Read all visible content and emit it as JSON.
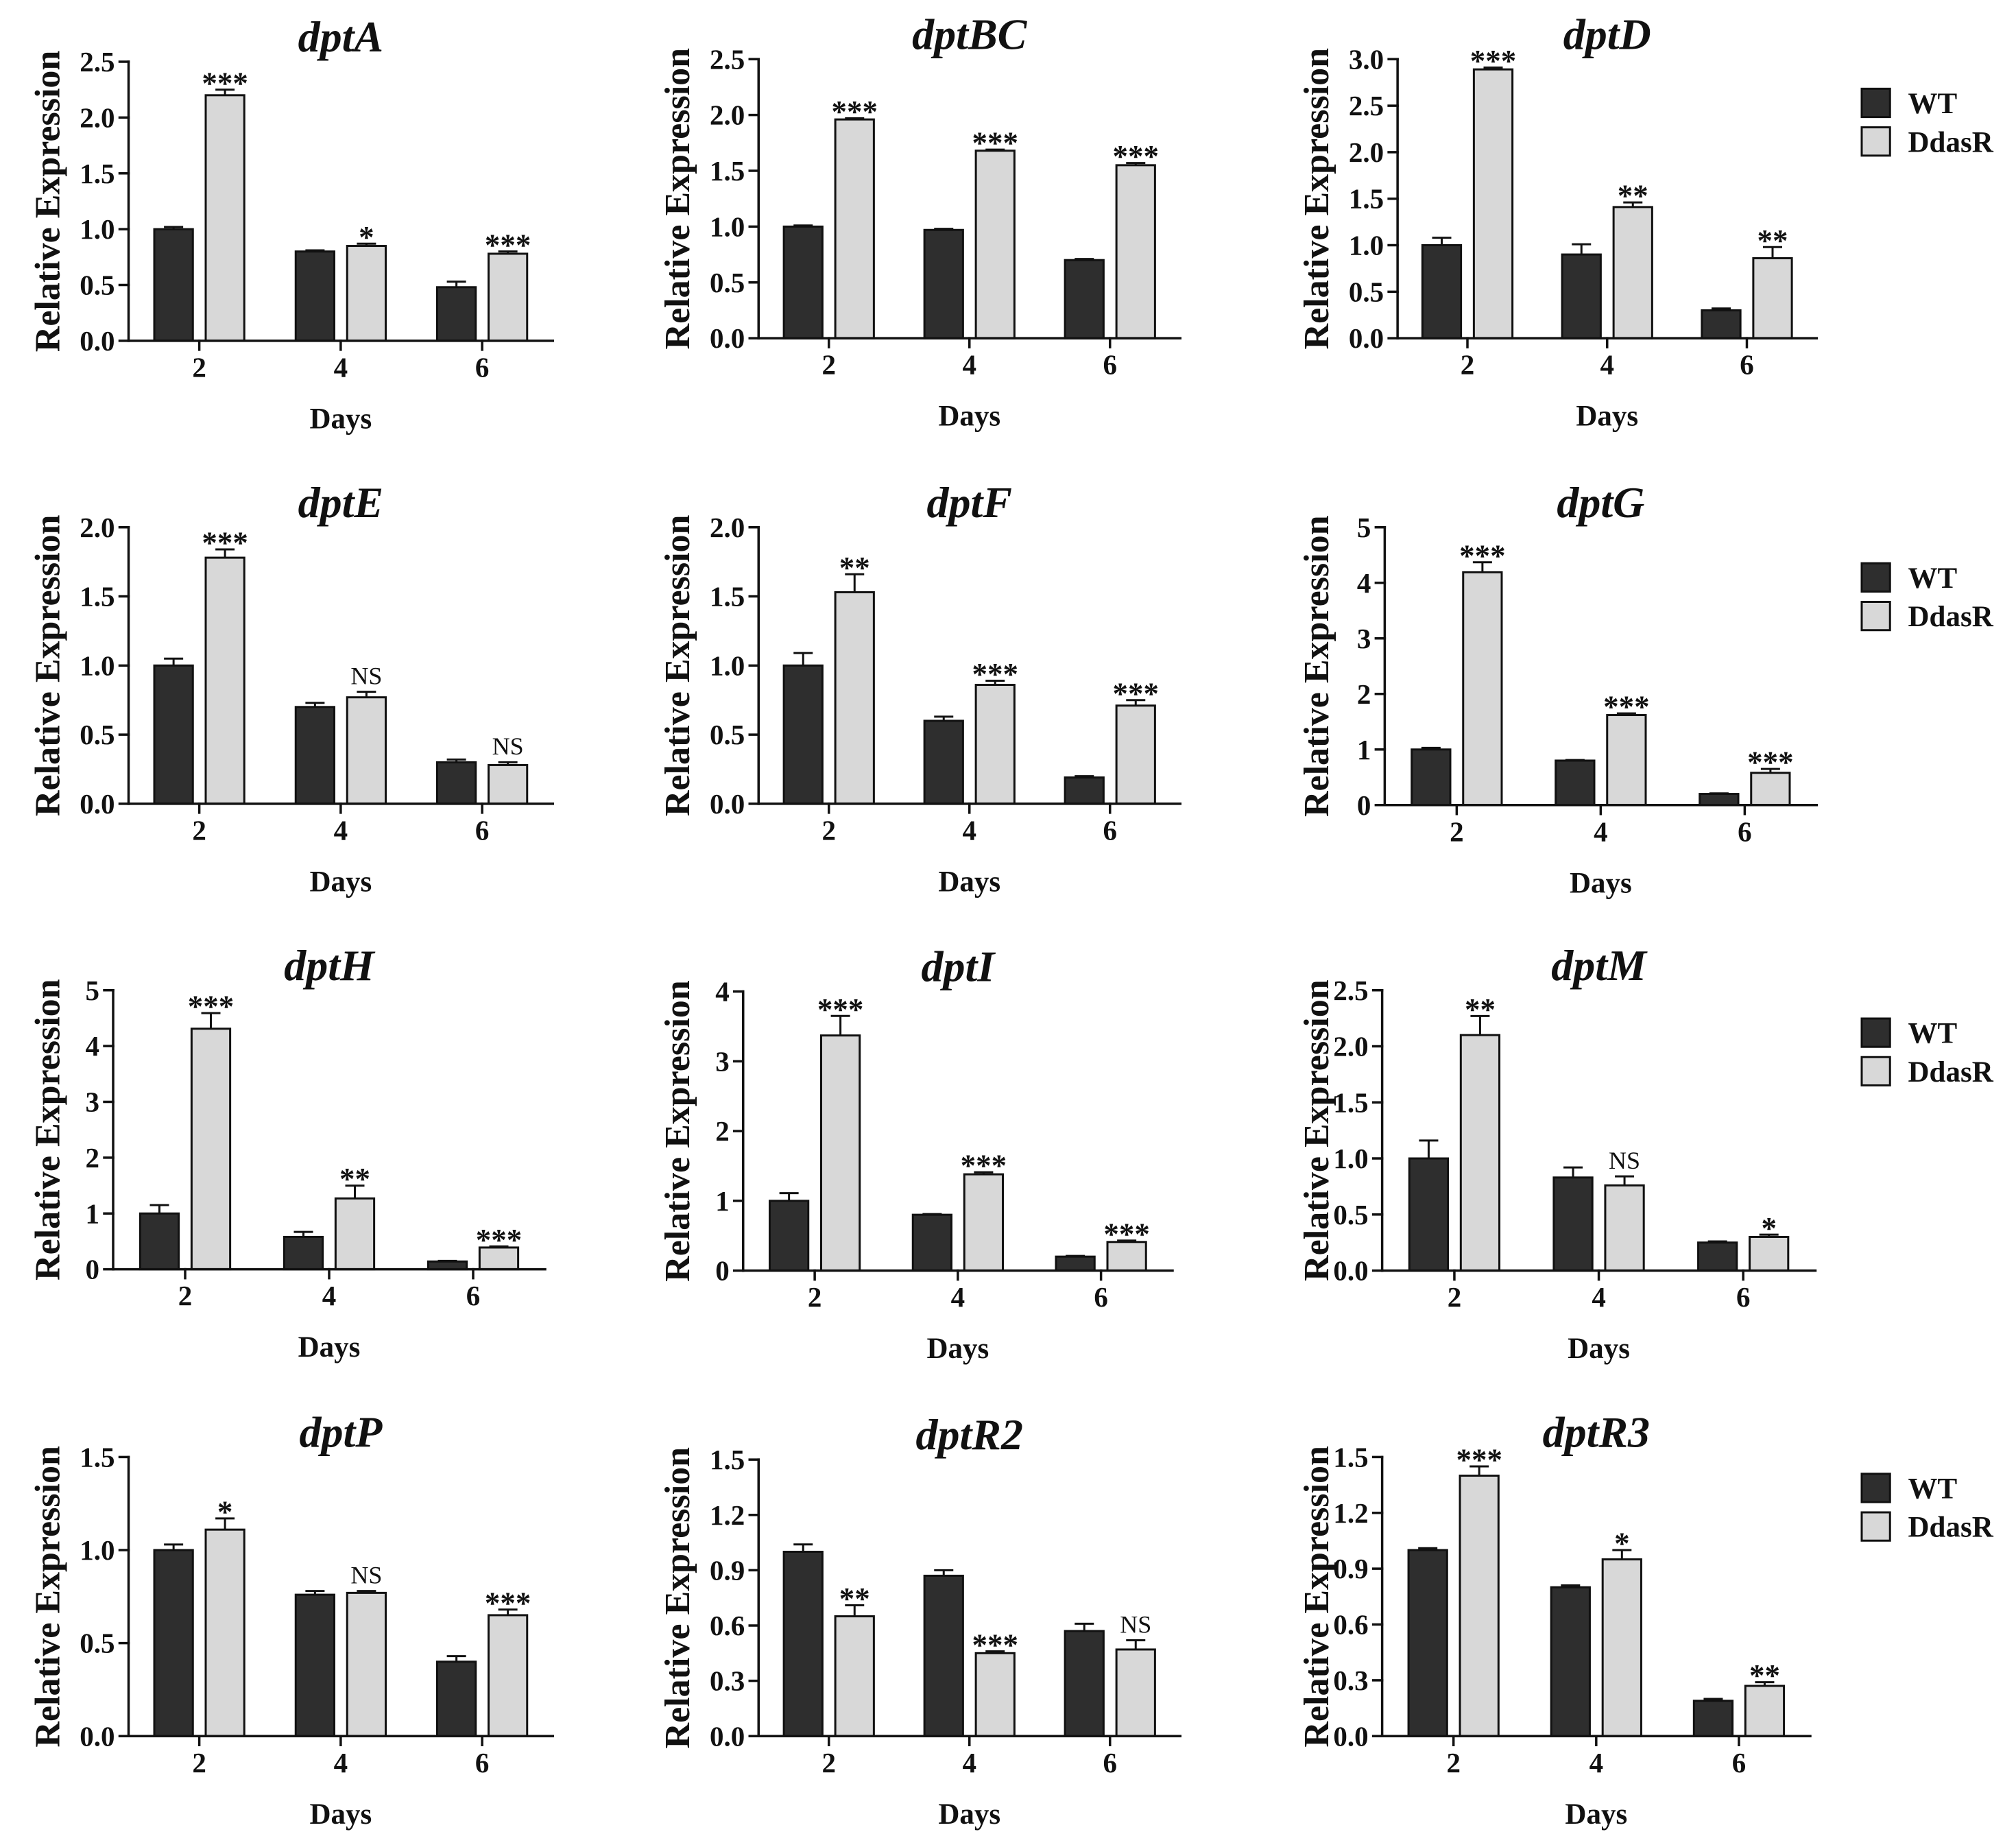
{
  "chart_data": [
    {
      "type": "bar",
      "title": "dptA",
      "xlabel": "Days",
      "ylabel": "Relative Expression",
      "categories": [
        "2",
        "4",
        "6"
      ],
      "ylim": [
        0,
        2.5
      ],
      "yticks": [
        "0.0",
        "0.5",
        "1.0",
        "1.5",
        "2.0",
        "2.5"
      ],
      "series": [
        {
          "name": "WT",
          "color": "#2e2e2e",
          "values": [
            1.0,
            0.8,
            0.48
          ],
          "errors": [
            0.02,
            0.01,
            0.05
          ]
        },
        {
          "name": "DdasR",
          "color": "#d8d8d8",
          "values": [
            2.2,
            0.85,
            0.78
          ],
          "errors": [
            0.05,
            0.02,
            0.02
          ]
        }
      ],
      "significance": [
        "***",
        "*",
        "***"
      ]
    },
    {
      "type": "bar",
      "title": "dptBC",
      "xlabel": "Days",
      "ylabel": "Relative Expression",
      "categories": [
        "2",
        "4",
        "6"
      ],
      "ylim": [
        0,
        2.5
      ],
      "yticks": [
        "0.0",
        "0.5",
        "1.0",
        "1.5",
        "2.0",
        "2.5"
      ],
      "series": [
        {
          "name": "WT",
          "color": "#2e2e2e",
          "values": [
            1.0,
            0.97,
            0.7
          ],
          "errors": [
            0.01,
            0.01,
            0.01
          ]
        },
        {
          "name": "DdasR",
          "color": "#d8d8d8",
          "values": [
            1.96,
            1.68,
            1.55
          ],
          "errors": [
            0.01,
            0.01,
            0.02
          ]
        }
      ],
      "significance": [
        "***",
        "***",
        "***"
      ]
    },
    {
      "type": "bar",
      "title": "dptD",
      "xlabel": "Days",
      "ylabel": "Relative Expression",
      "categories": [
        "2",
        "4",
        "6"
      ],
      "ylim": [
        0,
        3.0
      ],
      "yticks": [
        "0.0",
        "0.5",
        "1.0",
        "1.5",
        "2.0",
        "2.5",
        "3.0"
      ],
      "series": [
        {
          "name": "WT",
          "color": "#2e2e2e",
          "values": [
            1.0,
            0.9,
            0.3
          ],
          "errors": [
            0.08,
            0.11,
            0.02
          ]
        },
        {
          "name": "DdasR",
          "color": "#d8d8d8",
          "values": [
            2.89,
            1.41,
            0.86
          ],
          "errors": [
            0.02,
            0.05,
            0.12
          ]
        }
      ],
      "significance": [
        "***",
        "**",
        "**"
      ]
    },
    {
      "type": "bar",
      "title": "dptE",
      "xlabel": "Days",
      "ylabel": "Relative Expression",
      "categories": [
        "2",
        "4",
        "6"
      ],
      "ylim": [
        0,
        2.0
      ],
      "yticks": [
        "0.0",
        "0.5",
        "1.0",
        "1.5",
        "2.0"
      ],
      "series": [
        {
          "name": "WT",
          "color": "#2e2e2e",
          "values": [
            1.0,
            0.7,
            0.3
          ],
          "errors": [
            0.05,
            0.03,
            0.02
          ]
        },
        {
          "name": "DdasR",
          "color": "#d8d8d8",
          "values": [
            1.78,
            0.77,
            0.28
          ],
          "errors": [
            0.06,
            0.04,
            0.02
          ]
        }
      ],
      "significance": [
        "***",
        "NS",
        "NS"
      ]
    },
    {
      "type": "bar",
      "title": "dptF",
      "xlabel": "Days",
      "ylabel": "Relative Expression",
      "categories": [
        "2",
        "4",
        "6"
      ],
      "ylim": [
        0,
        2.0
      ],
      "yticks": [
        "0.0",
        "0.5",
        "1.0",
        "1.5",
        "2.0"
      ],
      "series": [
        {
          "name": "WT",
          "color": "#2e2e2e",
          "values": [
            1.0,
            0.6,
            0.19
          ],
          "errors": [
            0.09,
            0.03,
            0.01
          ]
        },
        {
          "name": "DdasR",
          "color": "#d8d8d8",
          "values": [
            1.53,
            0.86,
            0.71
          ],
          "errors": [
            0.13,
            0.03,
            0.04
          ]
        }
      ],
      "significance": [
        "**",
        "***",
        "***"
      ]
    },
    {
      "type": "bar",
      "title": "dptG",
      "xlabel": "Days",
      "ylabel": "Relative Expression",
      "categories": [
        "2",
        "4",
        "6"
      ],
      "ylim": [
        0,
        5
      ],
      "yticks": [
        "0",
        "1",
        "2",
        "3",
        "4",
        "5"
      ],
      "series": [
        {
          "name": "WT",
          "color": "#2e2e2e",
          "values": [
            1.0,
            0.8,
            0.2
          ],
          "errors": [
            0.03,
            0.01,
            0.01
          ]
        },
        {
          "name": "DdasR",
          "color": "#d8d8d8",
          "values": [
            4.19,
            1.62,
            0.58
          ],
          "errors": [
            0.18,
            0.03,
            0.07
          ]
        }
      ],
      "significance": [
        "***",
        "***",
        "***"
      ]
    },
    {
      "type": "bar",
      "title": "dptH",
      "xlabel": "Days",
      "ylabel": "Relative Expression",
      "categories": [
        "2",
        "4",
        "6"
      ],
      "ylim": [
        0,
        5
      ],
      "yticks": [
        "0",
        "1",
        "2",
        "3",
        "4",
        "5"
      ],
      "series": [
        {
          "name": "WT",
          "color": "#2e2e2e",
          "values": [
            1.0,
            0.58,
            0.14
          ],
          "errors": [
            0.15,
            0.09,
            0.01
          ]
        },
        {
          "name": "DdasR",
          "color": "#d8d8d8",
          "values": [
            4.31,
            1.27,
            0.39
          ],
          "errors": [
            0.28,
            0.23,
            0.02
          ]
        }
      ],
      "significance": [
        "***",
        "**",
        "***"
      ]
    },
    {
      "type": "bar",
      "title": "dptI",
      "xlabel": "Days",
      "ylabel": "Relative Expression",
      "categories": [
        "2",
        "4",
        "6"
      ],
      "ylim": [
        0,
        4
      ],
      "yticks": [
        "0",
        "1",
        "2",
        "3",
        "4"
      ],
      "series": [
        {
          "name": "WT",
          "color": "#2e2e2e",
          "values": [
            1.0,
            0.8,
            0.2
          ],
          "errors": [
            0.11,
            0.01,
            0.01
          ]
        },
        {
          "name": "DdasR",
          "color": "#d8d8d8",
          "values": [
            3.37,
            1.38,
            0.41
          ],
          "errors": [
            0.28,
            0.03,
            0.02
          ]
        }
      ],
      "significance": [
        "***",
        "***",
        "***"
      ]
    },
    {
      "type": "bar",
      "title": "dptM",
      "xlabel": "Days",
      "ylabel": "Relative Expression",
      "categories": [
        "2",
        "4",
        "6"
      ],
      "ylim": [
        0,
        2.5
      ],
      "yticks": [
        "0.0",
        "0.5",
        "1.0",
        "1.5",
        "2.0",
        "2.5"
      ],
      "series": [
        {
          "name": "WT",
          "color": "#2e2e2e",
          "values": [
            1.0,
            0.83,
            0.25
          ],
          "errors": [
            0.16,
            0.09,
            0.01
          ]
        },
        {
          "name": "DdasR",
          "color": "#d8d8d8",
          "values": [
            2.1,
            0.76,
            0.3
          ],
          "errors": [
            0.17,
            0.08,
            0.02
          ]
        }
      ],
      "significance": [
        "**",
        "NS",
        "*"
      ]
    },
    {
      "type": "bar",
      "title": "dptP",
      "xlabel": "Days",
      "ylabel": "Relative Expression",
      "categories": [
        "2",
        "4",
        "6"
      ],
      "ylim": [
        0,
        1.5
      ],
      "yticks": [
        "0.0",
        "0.5",
        "1.0",
        "1.5"
      ],
      "series": [
        {
          "name": "WT",
          "color": "#2e2e2e",
          "values": [
            1.0,
            0.76,
            0.4
          ],
          "errors": [
            0.03,
            0.02,
            0.03
          ]
        },
        {
          "name": "DdasR",
          "color": "#d8d8d8",
          "values": [
            1.11,
            0.77,
            0.65
          ],
          "errors": [
            0.06,
            0.01,
            0.03
          ]
        }
      ],
      "significance": [
        "*",
        "NS",
        "***"
      ]
    },
    {
      "type": "bar",
      "title": "dptR2",
      "xlabel": "Days",
      "ylabel": "Relative Expression",
      "categories": [
        "2",
        "4",
        "6"
      ],
      "ylim": [
        0,
        1.5
      ],
      "yticks": [
        "0.0",
        "0.3",
        "0.6",
        "0.9",
        "1.2",
        "1.5"
      ],
      "series": [
        {
          "name": "WT",
          "color": "#2e2e2e",
          "values": [
            1.0,
            0.87,
            0.57
          ],
          "errors": [
            0.04,
            0.03,
            0.04
          ]
        },
        {
          "name": "DdasR",
          "color": "#d8d8d8",
          "values": [
            0.65,
            0.45,
            0.47
          ],
          "errors": [
            0.06,
            0.01,
            0.05
          ]
        }
      ],
      "significance": [
        "**",
        "***",
        "NS"
      ]
    },
    {
      "type": "bar",
      "title": "dptR3",
      "xlabel": "Days",
      "ylabel": "Relative Expression",
      "categories": [
        "2",
        "4",
        "6"
      ],
      "ylim": [
        0,
        1.5
      ],
      "yticks": [
        "0.0",
        "0.3",
        "0.6",
        "0.9",
        "1.2",
        "1.5"
      ],
      "series": [
        {
          "name": "WT",
          "color": "#2e2e2e",
          "values": [
            1.0,
            0.8,
            0.19
          ],
          "errors": [
            0.01,
            0.01,
            0.01
          ]
        },
        {
          "name": "DdasR",
          "color": "#d8d8d8",
          "values": [
            1.4,
            0.95,
            0.27
          ],
          "errors": [
            0.05,
            0.05,
            0.02
          ]
        }
      ],
      "significance": [
        "***",
        "*",
        "**"
      ]
    }
  ]
}
